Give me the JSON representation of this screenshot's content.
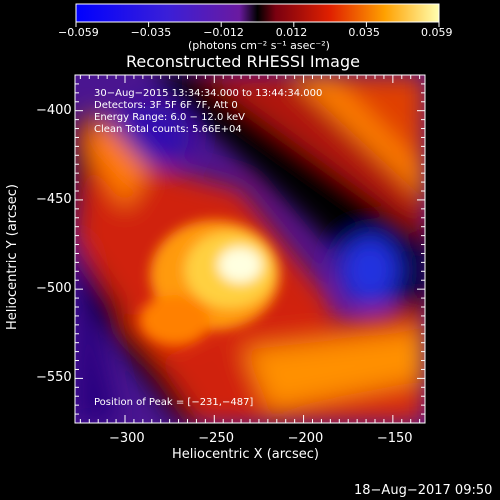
{
  "colorbar": {
    "min": -0.059,
    "max": 0.059,
    "tick_labels": [
      "−0.059",
      "−0.035",
      "−0.012",
      "0.012",
      "0.035",
      "0.059"
    ],
    "units": "(photons cm⁻² s⁻¹ asec⁻²)"
  },
  "chart_data": {
    "type": "heatmap",
    "title": "Reconstructed RHESSI Image",
    "xlabel": "Heliocentric X (arcsec)",
    "ylabel": "Heliocentric Y (arcsec)",
    "xlim": [
      -328,
      -132
    ],
    "ylim": [
      -575,
      -380
    ],
    "x_ticks": [
      -300,
      -250,
      -200,
      -150
    ],
    "y_ticks": [
      -400,
      -450,
      -500,
      -550
    ],
    "x_tick_labels": [
      "−300",
      "−250",
      "−200",
      "−150"
    ],
    "y_tick_labels": [
      "−400",
      "−450",
      "−500",
      "−550"
    ],
    "peak": [
      -231,
      -487
    ],
    "annotations": [
      "30−Aug−2015 13:34:34.000 to 13:44:34.000",
      "Detectors: 3F 5F 6F 7F, Att 0",
      "Energy Range: 6.0 − 12.0 keV",
      "Clean    Total counts: 5.66E+04"
    ],
    "peak_label": "Position of Peak = [−231,−487]"
  },
  "footer": {
    "timestamp": "18−Aug−2017 09:50"
  },
  "colors": {
    "background": "#000000",
    "text": "#ffffff"
  }
}
